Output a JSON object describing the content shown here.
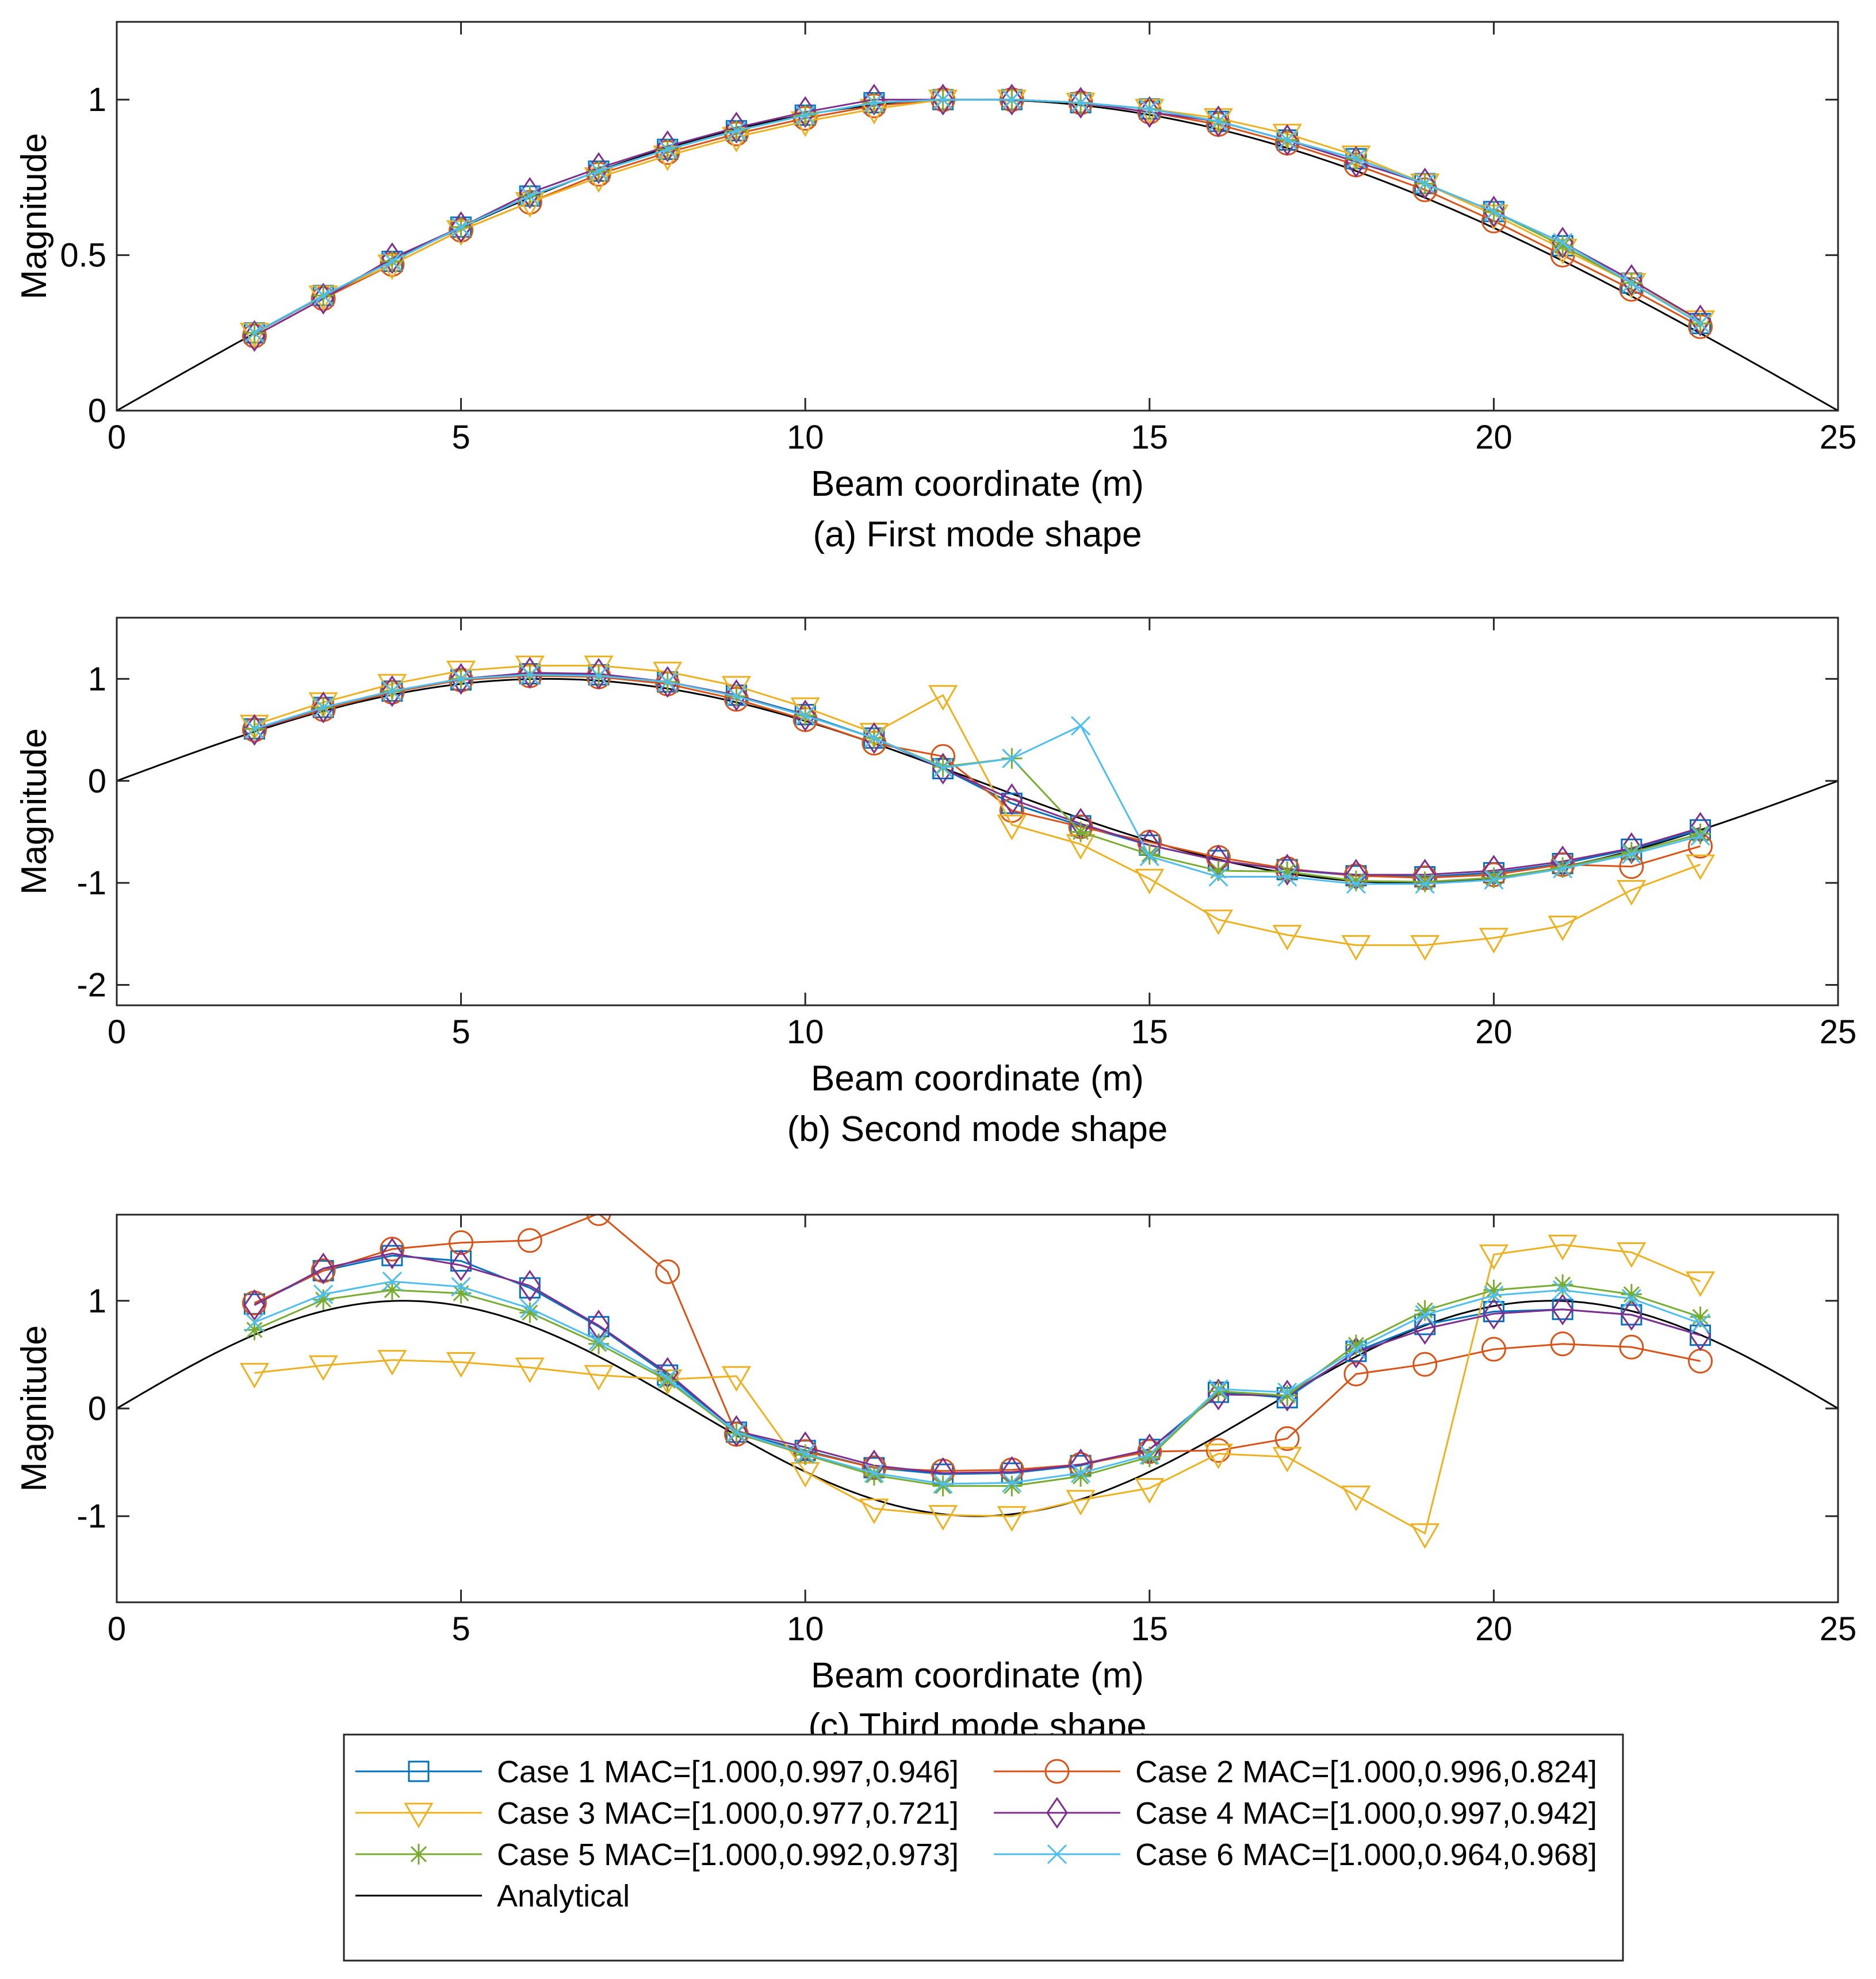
{
  "x_label": "Beam coordinate (m)",
  "y_label": "Magnitude",
  "colors": {
    "c1": "#0072BD",
    "c2": "#D95319",
    "c3": "#EDB120",
    "c4": "#7E2F8E",
    "c5": "#77AC30",
    "c6": "#4DBEEE",
    "analytical": "#000000"
  },
  "legend": {
    "items": [
      {
        "key": "c1",
        "label": "Case 1 MAC=[1.000,0.997,0.946]",
        "marker": "square"
      },
      {
        "key": "c2",
        "label": "Case 2 MAC=[1.000,0.996,0.824]",
        "marker": "circle"
      },
      {
        "key": "c3",
        "label": "Case 3 MAC=[1.000,0.977,0.721]",
        "marker": "triangle-down"
      },
      {
        "key": "c4",
        "label": "Case 4 MAC=[1.000,0.997,0.942]",
        "marker": "diamond"
      },
      {
        "key": "c5",
        "label": "Case 5 MAC=[1.000,0.992,0.973]",
        "marker": "asterisk"
      },
      {
        "key": "c6",
        "label": "Case 6 MAC=[1.000,0.964,0.968]",
        "marker": "cross"
      },
      {
        "key": "analytical",
        "label": "Analytical",
        "marker": "none"
      }
    ]
  },
  "chart_data": [
    {
      "type": "line",
      "id": "a",
      "caption": "(a) First mode shape",
      "xlabel": "Beam coordinate (m)",
      "ylabel": "Magnitude",
      "xlim": [
        0,
        25
      ],
      "ylim": [
        0,
        1.25
      ],
      "xticks": [
        0,
        5,
        10,
        15,
        20,
        25
      ],
      "yticks": [
        0,
        0.5,
        1
      ],
      "ytick_labels": [
        "0",
        "0.5",
        "1"
      ],
      "x": [
        2,
        3,
        4,
        5,
        6,
        7,
        8,
        9,
        10,
        11,
        12,
        13,
        14,
        15,
        16,
        17,
        18,
        19,
        20,
        21,
        22,
        23
      ],
      "analytical": {
        "name": "Analytical",
        "mode": 1,
        "length": 25
      },
      "series": [
        {
          "key": "c1",
          "name": "Case 1",
          "values": [
            0.25,
            0.37,
            0.48,
            0.59,
            0.69,
            0.77,
            0.84,
            0.9,
            0.95,
            0.99,
            1.0,
            1.0,
            0.99,
            0.97,
            0.93,
            0.87,
            0.81,
            0.73,
            0.64,
            0.53,
            0.41,
            0.28
          ]
        },
        {
          "key": "c2",
          "name": "Case 2",
          "values": [
            0.24,
            0.36,
            0.47,
            0.58,
            0.67,
            0.76,
            0.83,
            0.89,
            0.94,
            0.98,
            1.0,
            1.0,
            0.99,
            0.96,
            0.92,
            0.86,
            0.79,
            0.71,
            0.61,
            0.5,
            0.39,
            0.27
          ]
        },
        {
          "key": "c3",
          "name": "Case 3",
          "values": [
            0.25,
            0.37,
            0.47,
            0.58,
            0.67,
            0.75,
            0.82,
            0.88,
            0.93,
            0.97,
            1.0,
            1.0,
            0.99,
            0.97,
            0.94,
            0.89,
            0.82,
            0.73,
            0.63,
            0.52,
            0.41,
            0.29
          ]
        },
        {
          "key": "c4",
          "name": "Case 4",
          "values": [
            0.24,
            0.36,
            0.49,
            0.59,
            0.7,
            0.78,
            0.85,
            0.91,
            0.96,
            1.0,
            1.0,
            1.0,
            0.99,
            0.96,
            0.93,
            0.87,
            0.8,
            0.73,
            0.64,
            0.54,
            0.42,
            0.29
          ]
        },
        {
          "key": "c5",
          "name": "Case 5",
          "values": [
            0.25,
            0.37,
            0.48,
            0.59,
            0.69,
            0.77,
            0.84,
            0.9,
            0.95,
            0.99,
            1.0,
            1.0,
            0.99,
            0.97,
            0.93,
            0.87,
            0.81,
            0.73,
            0.64,
            0.53,
            0.41,
            0.28
          ]
        },
        {
          "key": "c6",
          "name": "Case 6",
          "values": [
            0.25,
            0.37,
            0.48,
            0.59,
            0.69,
            0.77,
            0.84,
            0.9,
            0.95,
            0.99,
            1.0,
            1.0,
            0.99,
            0.97,
            0.93,
            0.87,
            0.81,
            0.73,
            0.64,
            0.54,
            0.41,
            0.28
          ]
        }
      ]
    },
    {
      "type": "line",
      "id": "b",
      "caption": "(b) Second mode shape",
      "xlabel": "Beam coordinate (m)",
      "ylabel": "Magnitude",
      "xlim": [
        0,
        25
      ],
      "ylim": [
        -2.2,
        1.6
      ],
      "xticks": [
        0,
        5,
        10,
        15,
        20,
        25
      ],
      "yticks": [
        -2,
        -1,
        0,
        1
      ],
      "ytick_labels": [
        "-2",
        "-1",
        "0",
        "1"
      ],
      "x": [
        2,
        3,
        4,
        5,
        6,
        7,
        8,
        9,
        10,
        11,
        12,
        13,
        14,
        15,
        16,
        17,
        18,
        19,
        20,
        21,
        22,
        23
      ],
      "analytical": {
        "name": "Analytical",
        "mode": 2,
        "length": 25
      },
      "series": [
        {
          "key": "c1",
          "name": "Case 1",
          "values": [
            0.51,
            0.72,
            0.88,
            0.99,
            1.05,
            1.04,
            0.97,
            0.84,
            0.65,
            0.42,
            0.12,
            -0.22,
            -0.44,
            -0.63,
            -0.78,
            -0.87,
            -0.93,
            -0.94,
            -0.9,
            -0.81,
            -0.67,
            -0.48
          ]
        },
        {
          "key": "c2",
          "name": "Case 2",
          "values": [
            0.5,
            0.7,
            0.87,
            0.99,
            1.03,
            1.02,
            0.95,
            0.8,
            0.6,
            0.37,
            0.24,
            -0.29,
            -0.45,
            -0.6,
            -0.75,
            -0.86,
            -0.93,
            -0.95,
            -0.92,
            -0.82,
            -0.84,
            -0.64
          ]
        },
        {
          "key": "c3",
          "name": "Case 3",
          "values": [
            0.55,
            0.77,
            0.95,
            1.08,
            1.13,
            1.13,
            1.07,
            0.93,
            0.72,
            0.47,
            0.84,
            -0.43,
            -0.62,
            -0.96,
            -1.36,
            -1.51,
            -1.61,
            -1.61,
            -1.54,
            -1.42,
            -1.07,
            -0.82
          ]
        },
        {
          "key": "c4",
          "name": "Case 4",
          "values": [
            0.5,
            0.72,
            0.88,
            1.0,
            1.06,
            1.05,
            0.97,
            0.84,
            0.64,
            0.42,
            0.12,
            -0.18,
            -0.42,
            -0.63,
            -0.78,
            -0.87,
            -0.92,
            -0.92,
            -0.88,
            -0.79,
            -0.66,
            -0.46
          ]
        },
        {
          "key": "c5",
          "name": "Case 5",
          "values": [
            0.51,
            0.72,
            0.88,
            1.0,
            1.04,
            1.03,
            0.97,
            0.83,
            0.64,
            0.42,
            0.14,
            0.22,
            -0.5,
            -0.72,
            -0.88,
            -0.89,
            -0.98,
            -0.99,
            -0.95,
            -0.85,
            -0.7,
            -0.52
          ]
        },
        {
          "key": "c6",
          "name": "Case 6",
          "values": [
            0.51,
            0.72,
            0.88,
            1.0,
            1.04,
            1.03,
            0.97,
            0.83,
            0.64,
            0.42,
            0.13,
            0.22,
            0.54,
            -0.74,
            -0.94,
            -0.94,
            -1.01,
            -1.01,
            -0.97,
            -0.86,
            -0.72,
            -0.54
          ]
        }
      ]
    },
    {
      "type": "line",
      "id": "c",
      "caption": "(c) Third mode shape",
      "xlabel": "Beam coordinate (m)",
      "ylabel": "Magnitude",
      "xlim": [
        0,
        25
      ],
      "ylim": [
        -1.8,
        1.8
      ],
      "xticks": [
        0,
        5,
        10,
        15,
        20,
        25
      ],
      "yticks": [
        -1,
        0,
        1
      ],
      "ytick_labels": [
        "-1",
        "0",
        "1"
      ],
      "x": [
        2,
        3,
        4,
        5,
        6,
        7,
        8,
        9,
        10,
        11,
        12,
        13,
        14,
        15,
        16,
        17,
        18,
        19,
        20,
        21,
        22,
        23
      ],
      "analytical": {
        "name": "Analytical",
        "mode": 3,
        "length": 25
      },
      "series": [
        {
          "key": "c1",
          "name": "Case 1",
          "values": [
            0.97,
            1.28,
            1.42,
            1.37,
            1.12,
            0.76,
            0.31,
            -0.22,
            -0.39,
            -0.55,
            -0.61,
            -0.6,
            -0.53,
            -0.38,
            0.15,
            0.1,
            0.53,
            0.78,
            0.9,
            0.92,
            0.87,
            0.68
          ]
        },
        {
          "key": "c2",
          "name": "Case 2",
          "values": [
            0.98,
            1.28,
            1.48,
            1.54,
            1.56,
            1.81,
            1.27,
            -0.24,
            -0.4,
            -0.55,
            -0.58,
            -0.57,
            -0.52,
            -0.4,
            -0.39,
            -0.28,
            0.32,
            0.41,
            0.55,
            0.6,
            0.57,
            0.44
          ]
        },
        {
          "key": "c3",
          "name": "Case 3",
          "values": [
            0.33,
            0.4,
            0.45,
            0.43,
            0.38,
            0.31,
            0.27,
            0.3,
            -0.59,
            -0.93,
            -0.99,
            -1.0,
            -0.85,
            -0.74,
            -0.42,
            -0.45,
            -0.81,
            -1.16,
            1.43,
            1.52,
            1.45,
            1.18
          ]
        },
        {
          "key": "c4",
          "name": "Case 4",
          "values": [
            0.96,
            1.3,
            1.44,
            1.33,
            1.14,
            0.77,
            0.33,
            -0.21,
            -0.36,
            -0.53,
            -0.6,
            -0.59,
            -0.52,
            -0.38,
            0.13,
            0.12,
            0.52,
            0.74,
            0.88,
            0.92,
            0.87,
            0.68
          ]
        },
        {
          "key": "c5",
          "name": "Case 5",
          "values": [
            0.73,
            1.01,
            1.1,
            1.07,
            0.89,
            0.6,
            0.26,
            -0.23,
            -0.43,
            -0.62,
            -0.72,
            -0.72,
            -0.63,
            -0.45,
            0.16,
            0.12,
            0.59,
            0.91,
            1.1,
            1.15,
            1.06,
            0.85
          ]
        },
        {
          "key": "c6",
          "name": "Case 6",
          "values": [
            0.8,
            1.06,
            1.18,
            1.13,
            0.93,
            0.63,
            0.28,
            -0.22,
            -0.42,
            -0.6,
            -0.7,
            -0.69,
            -0.6,
            -0.43,
            0.18,
            0.15,
            0.55,
            0.87,
            1.05,
            1.1,
            1.02,
            0.79
          ]
        }
      ]
    }
  ]
}
